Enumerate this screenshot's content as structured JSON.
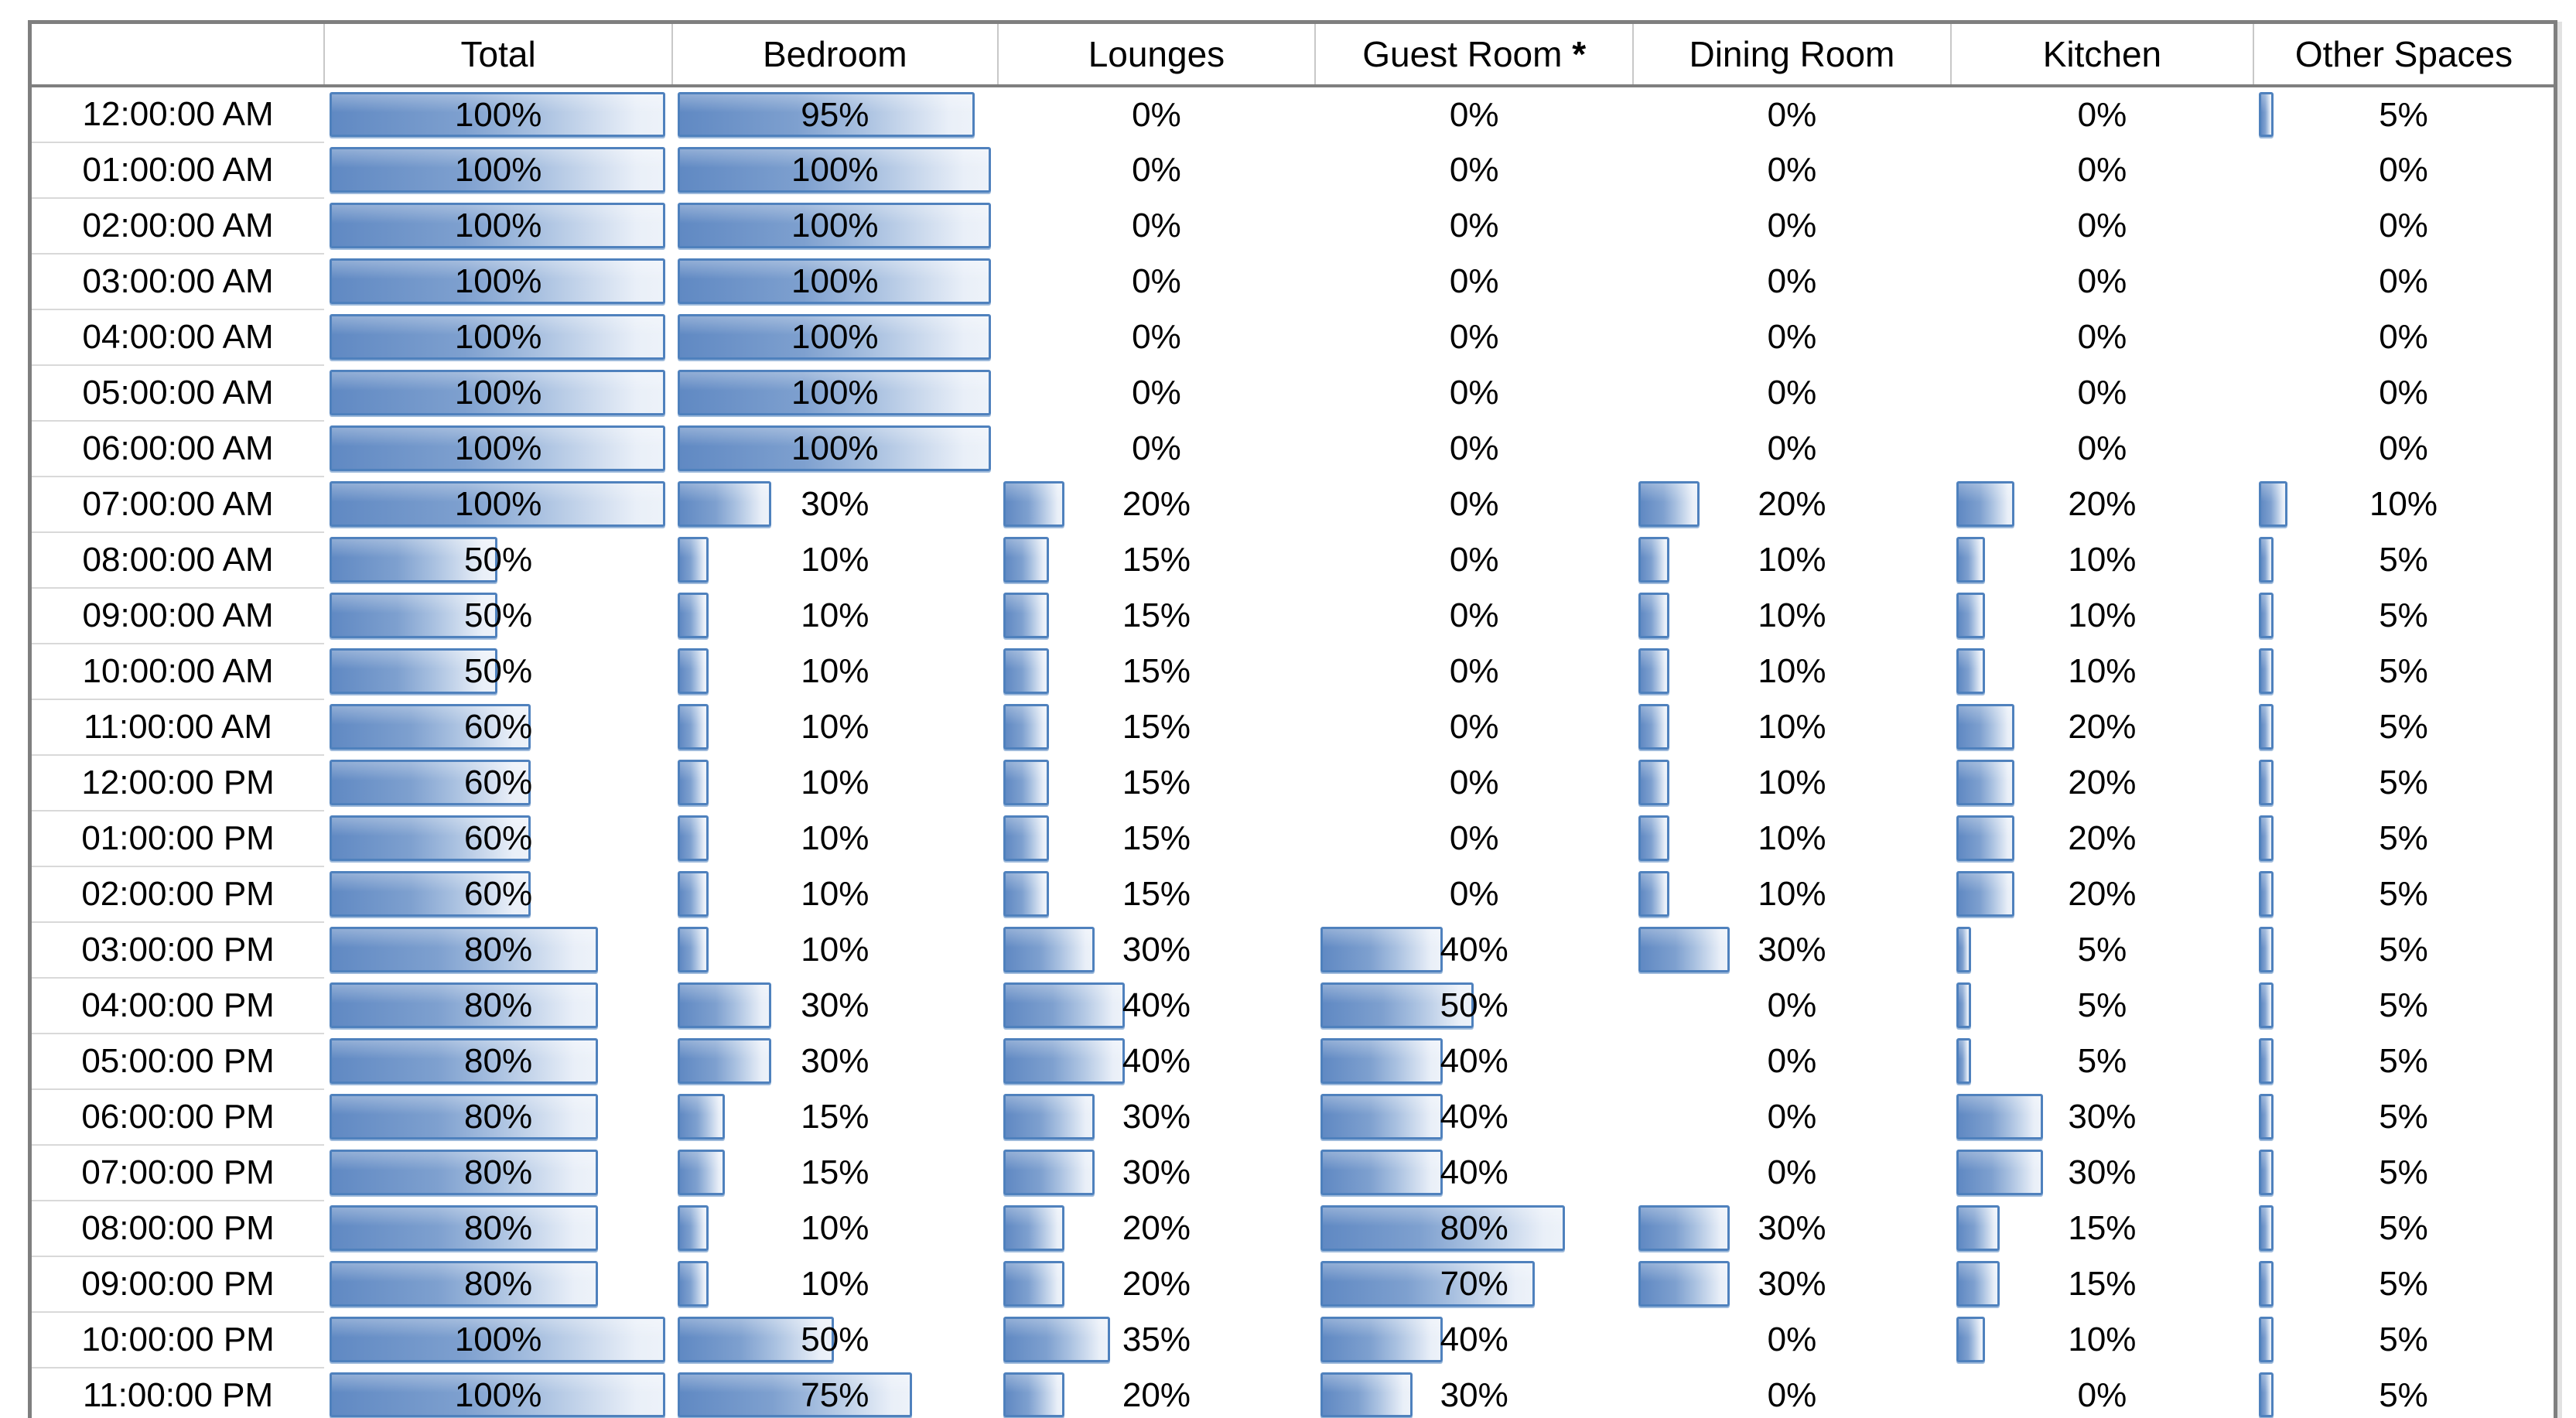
{
  "chart_data": {
    "type": "table",
    "columns": [
      "Total",
      "Bedroom",
      "Lounges",
      "Guest Room *",
      "Dining Room",
      "Kitchen",
      "Other Spaces"
    ],
    "value_suffix": "%",
    "rows": [
      {
        "time": "12:00:00 AM",
        "values": [
          100,
          95,
          0,
          0,
          0,
          0,
          5
        ]
      },
      {
        "time": "01:00:00 AM",
        "values": [
          100,
          100,
          0,
          0,
          0,
          0,
          0
        ]
      },
      {
        "time": "02:00:00 AM",
        "values": [
          100,
          100,
          0,
          0,
          0,
          0,
          0
        ]
      },
      {
        "time": "03:00:00 AM",
        "values": [
          100,
          100,
          0,
          0,
          0,
          0,
          0
        ]
      },
      {
        "time": "04:00:00 AM",
        "values": [
          100,
          100,
          0,
          0,
          0,
          0,
          0
        ]
      },
      {
        "time": "05:00:00 AM",
        "values": [
          100,
          100,
          0,
          0,
          0,
          0,
          0
        ]
      },
      {
        "time": "06:00:00 AM",
        "values": [
          100,
          100,
          0,
          0,
          0,
          0,
          0
        ]
      },
      {
        "time": "07:00:00 AM",
        "values": [
          100,
          30,
          20,
          0,
          20,
          20,
          10
        ]
      },
      {
        "time": "08:00:00 AM",
        "values": [
          50,
          10,
          15,
          0,
          10,
          10,
          5
        ]
      },
      {
        "time": "09:00:00 AM",
        "values": [
          50,
          10,
          15,
          0,
          10,
          10,
          5
        ]
      },
      {
        "time": "10:00:00 AM",
        "values": [
          50,
          10,
          15,
          0,
          10,
          10,
          5
        ]
      },
      {
        "time": "11:00:00 AM",
        "values": [
          60,
          10,
          15,
          0,
          10,
          20,
          5
        ]
      },
      {
        "time": "12:00:00 PM",
        "values": [
          60,
          10,
          15,
          0,
          10,
          20,
          5
        ]
      },
      {
        "time": "01:00:00 PM",
        "values": [
          60,
          10,
          15,
          0,
          10,
          20,
          5
        ]
      },
      {
        "time": "02:00:00 PM",
        "values": [
          60,
          10,
          15,
          0,
          10,
          20,
          5
        ]
      },
      {
        "time": "03:00:00 PM",
        "values": [
          80,
          10,
          30,
          40,
          30,
          5,
          5
        ]
      },
      {
        "time": "04:00:00 PM",
        "values": [
          80,
          30,
          40,
          50,
          0,
          5,
          5
        ]
      },
      {
        "time": "05:00:00 PM",
        "values": [
          80,
          30,
          40,
          40,
          0,
          5,
          5
        ]
      },
      {
        "time": "06:00:00 PM",
        "values": [
          80,
          15,
          30,
          40,
          0,
          30,
          5
        ]
      },
      {
        "time": "07:00:00 PM",
        "values": [
          80,
          15,
          30,
          40,
          0,
          30,
          5
        ]
      },
      {
        "time": "08:00:00 PM",
        "values": [
          80,
          10,
          20,
          80,
          30,
          15,
          5
        ]
      },
      {
        "time": "09:00:00 PM",
        "values": [
          80,
          10,
          20,
          70,
          30,
          15,
          5
        ]
      },
      {
        "time": "10:00:00 PM",
        "values": [
          100,
          50,
          35,
          40,
          0,
          10,
          5
        ]
      },
      {
        "time": "11:00:00 PM",
        "values": [
          100,
          75,
          20,
          30,
          0,
          0,
          5
        ]
      }
    ],
    "layout": {
      "bar_max": 100,
      "bars_in_cells": true,
      "legend": false,
      "column_widths_pct": [
        11.6,
        13.8,
        12.9,
        12.6,
        12.6,
        12.6,
        12.0,
        11.9
      ]
    },
    "style": {
      "bar_fill_start": "#6089c3",
      "bar_fill_end": "#edf2f9",
      "bar_border": "#4f81bd",
      "table_border": "#7f7f7f",
      "header_separator": "#c8c8c8",
      "row_separator": "#d9d9d9",
      "text_color": "#000000"
    }
  }
}
